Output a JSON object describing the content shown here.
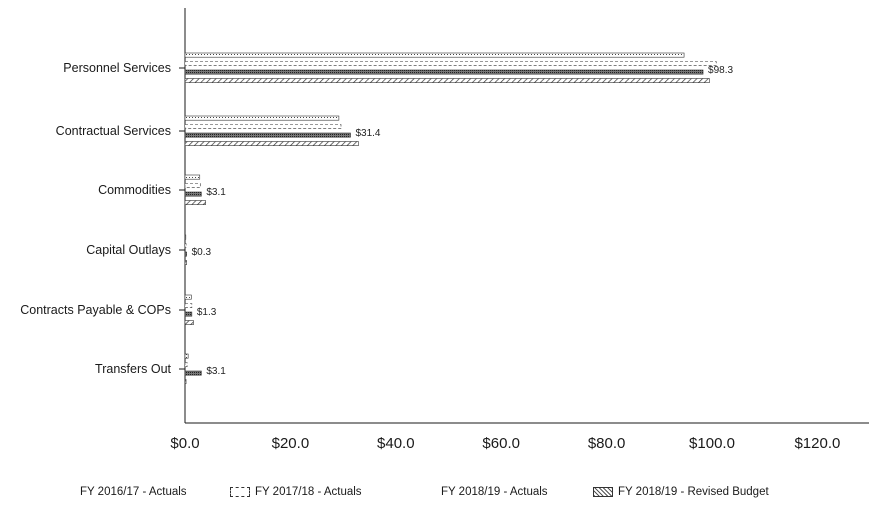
{
  "chart_data": {
    "type": "bar",
    "orientation": "horizontal",
    "categories": [
      "Personnel Services",
      "Contractual Services",
      "Commodities",
      "Capital Outlays",
      "Contracts Payable & COPs",
      "Transfers Out"
    ],
    "series": [
      {
        "name": "FY 2016/17 - Actuals",
        "values": [
          94.7,
          29.2,
          2.8,
          0.1,
          1.2,
          0.6
        ],
        "pattern": "dotted"
      },
      {
        "name": "FY 2017/18 - Actuals",
        "values": [
          100.8,
          29.6,
          2.9,
          0.2,
          1.3,
          0.4
        ],
        "pattern": "dashed"
      },
      {
        "name": "FY 2018/19 - Actuals",
        "values": [
          98.3,
          31.4,
          3.1,
          0.3,
          1.3,
          3.1
        ],
        "pattern": "dense"
      },
      {
        "name": "FY 2018/19 - Revised Budget",
        "values": [
          99.5,
          32.9,
          3.9,
          0.3,
          1.6,
          0.2
        ],
        "pattern": "hatched"
      }
    ],
    "data_labels": [
      "$98.3",
      "$31.4",
      "$3.1",
      "$0.3",
      "$1.3",
      "$3.1"
    ],
    "x_ticks": [
      "$0.0",
      "$20.0",
      "$40.0",
      "$60.0",
      "$80.0",
      "$100.0",
      "$120.0"
    ],
    "x_tick_values": [
      0,
      20,
      40,
      60,
      80,
      100,
      120
    ],
    "xlim": [
      0,
      130
    ],
    "title": "",
    "xlabel": "",
    "ylabel": "",
    "grid": false,
    "legend_position": "bottom"
  },
  "colors": {
    "ink": "#333333",
    "axis": "#1a1a1a",
    "background": "#ffffff"
  }
}
